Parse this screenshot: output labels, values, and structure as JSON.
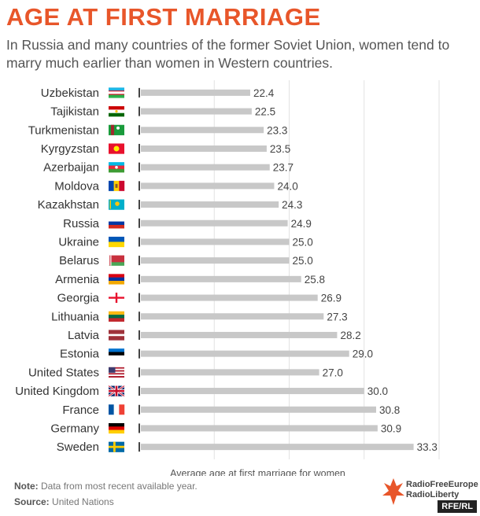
{
  "header": {
    "title": "AGE AT FIRST MARRIAGE",
    "subtitle": "In Russia and many countries of the former Soviet Union, women tend to marry much earlier than women in Western countries."
  },
  "footer": {
    "note_label": "Note:",
    "note_text": " Data from most recent available year.",
    "source_label": "Source:",
    "source_text": " United Nations",
    "logo_line1": "RadioFreeEurope",
    "logo_line2": "RadioLiberty",
    "badge": "RFE/RL"
  },
  "chart_data": {
    "type": "bar",
    "orientation": "horizontal",
    "xlabel": "Average age at first marriage for women",
    "categories": [
      "Uzbekistan",
      "Tajikistan",
      "Turkmenistan",
      "Kyrgyzstan",
      "Azerbaijan",
      "Moldova",
      "Kazakhstan",
      "Russia",
      "Ukraine",
      "Belarus",
      "Armenia",
      "Georgia",
      "Lithuania",
      "Latvia",
      "Estonia",
      "United States",
      "United Kingdom",
      "France",
      "Germany",
      "Sweden"
    ],
    "values": [
      22.4,
      22.5,
      23.3,
      23.5,
      23.7,
      24.0,
      24.3,
      24.9,
      25.0,
      25.0,
      25.8,
      26.9,
      27.3,
      28.2,
      29.0,
      27.0,
      30.0,
      30.8,
      30.9,
      33.3
    ],
    "value_labels": [
      "22.4",
      "22.5",
      "23.3",
      "23.5",
      "23.7",
      "24.0",
      "24.3",
      "24.9",
      "25.0",
      "25.0",
      "25.8",
      "26.9",
      "27.3",
      "28.2",
      "29.0",
      "27.0",
      "30.0",
      "30.8",
      "30.9",
      "33.3"
    ],
    "flags": [
      "uzbekistan-flag",
      "tajikistan-flag",
      "turkmenistan-flag",
      "kyrgyzstan-flag",
      "azerbaijan-flag",
      "moldova-flag",
      "kazakhstan-flag",
      "russia-flag",
      "ukraine-flag",
      "belarus-flag",
      "armenia-flag",
      "georgia-flag",
      "lithuania-flag",
      "latvia-flag",
      "estonia-flag",
      "united-states-flag",
      "united-kingdom-flag",
      "france-flag",
      "germany-flag",
      "sweden-flag"
    ],
    "xlim": [
      15,
      35
    ],
    "grid": true,
    "bar_color": "#c8c8c8",
    "title_color": "#e8562a"
  }
}
